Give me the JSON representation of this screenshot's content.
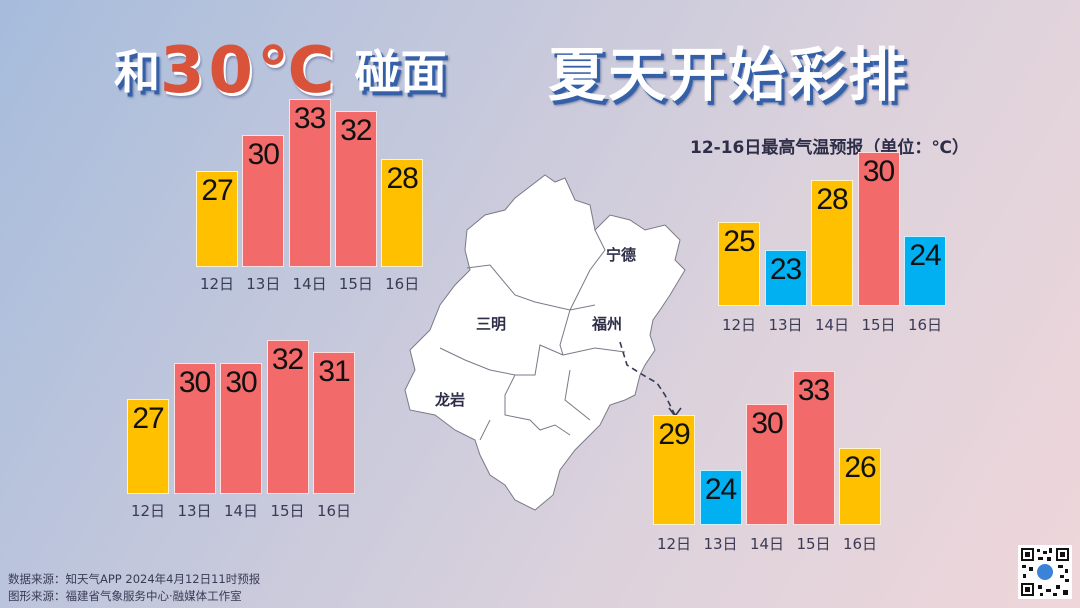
{
  "title": {
    "part1_prefix": "和",
    "part1_hot": "30℃",
    "part1_suffix": "碰面",
    "part2": "夏天开始彩排"
  },
  "subtitle": "12-16日最高气温预报（单位：℃）",
  "colors": {
    "yellow": "#FFC000",
    "red": "#F26A6A",
    "blue": "#00B0F0"
  },
  "map": {
    "cities": [
      {
        "name": "宁德"
      },
      {
        "name": "三明"
      },
      {
        "name": "福州"
      },
      {
        "name": "龙岩"
      }
    ]
  },
  "chart_data": [
    {
      "type": "bar",
      "region": "三明",
      "categories": [
        "12日",
        "13日",
        "14日",
        "15日",
        "16日"
      ],
      "values": [
        27,
        30,
        33,
        32,
        28
      ],
      "colors": [
        "yellow",
        "red",
        "red",
        "red",
        "yellow"
      ]
    },
    {
      "type": "bar",
      "region": "龙岩",
      "categories": [
        "12日",
        "13日",
        "14日",
        "15日",
        "16日"
      ],
      "values": [
        27,
        30,
        30,
        32,
        31
      ],
      "colors": [
        "yellow",
        "red",
        "red",
        "red",
        "red"
      ]
    },
    {
      "type": "bar",
      "region": "宁德",
      "categories": [
        "12日",
        "13日",
        "14日",
        "15日",
        "16日"
      ],
      "values": [
        25,
        23,
        28,
        30,
        24
      ],
      "colors": [
        "yellow",
        "blue",
        "yellow",
        "red",
        "blue"
      ]
    },
    {
      "type": "bar",
      "region": "福州",
      "categories": [
        "12日",
        "13日",
        "14日",
        "15日",
        "16日"
      ],
      "values": [
        29,
        24,
        30,
        33,
        26
      ],
      "colors": [
        "yellow",
        "blue",
        "red",
        "red",
        "yellow"
      ]
    }
  ],
  "footer": {
    "line1": "数据来源：知天气APP 2024年4月12日11时预报",
    "line2": "图形来源：福建省气象服务中心·融媒体工作室"
  },
  "qr": {
    "icon": "qr-code-icon"
  }
}
